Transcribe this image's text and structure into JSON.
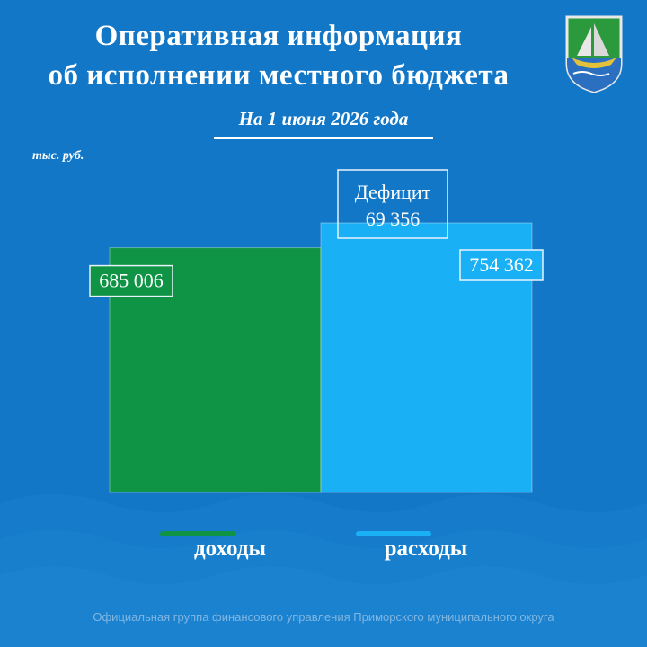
{
  "header": {
    "title_line1": "Оперативная информация",
    "title_line2": "об исполнении местного бюджета",
    "date_line": "На 1 июня 2026 года",
    "unit": "тыс. руб."
  },
  "footer": {
    "text": "Официальная группа финансового управления Приморского муниципального округа"
  },
  "colors": {
    "background": "#1277c6",
    "income": "#0e9444",
    "expenses": "#19b0f5"
  },
  "chart_data": {
    "type": "bar",
    "categories": [
      "доходы",
      "расходы"
    ],
    "values": [
      685006,
      754362
    ],
    "value_labels": [
      "685 006",
      "754 362"
    ],
    "deficit": {
      "label": "Дефицит",
      "value": 69356,
      "value_label": "69 356"
    },
    "legend": [
      "доходы",
      "расходы"
    ],
    "legend_placement": "bottom",
    "ylim": [
      0,
      754362
    ],
    "grid": false
  }
}
